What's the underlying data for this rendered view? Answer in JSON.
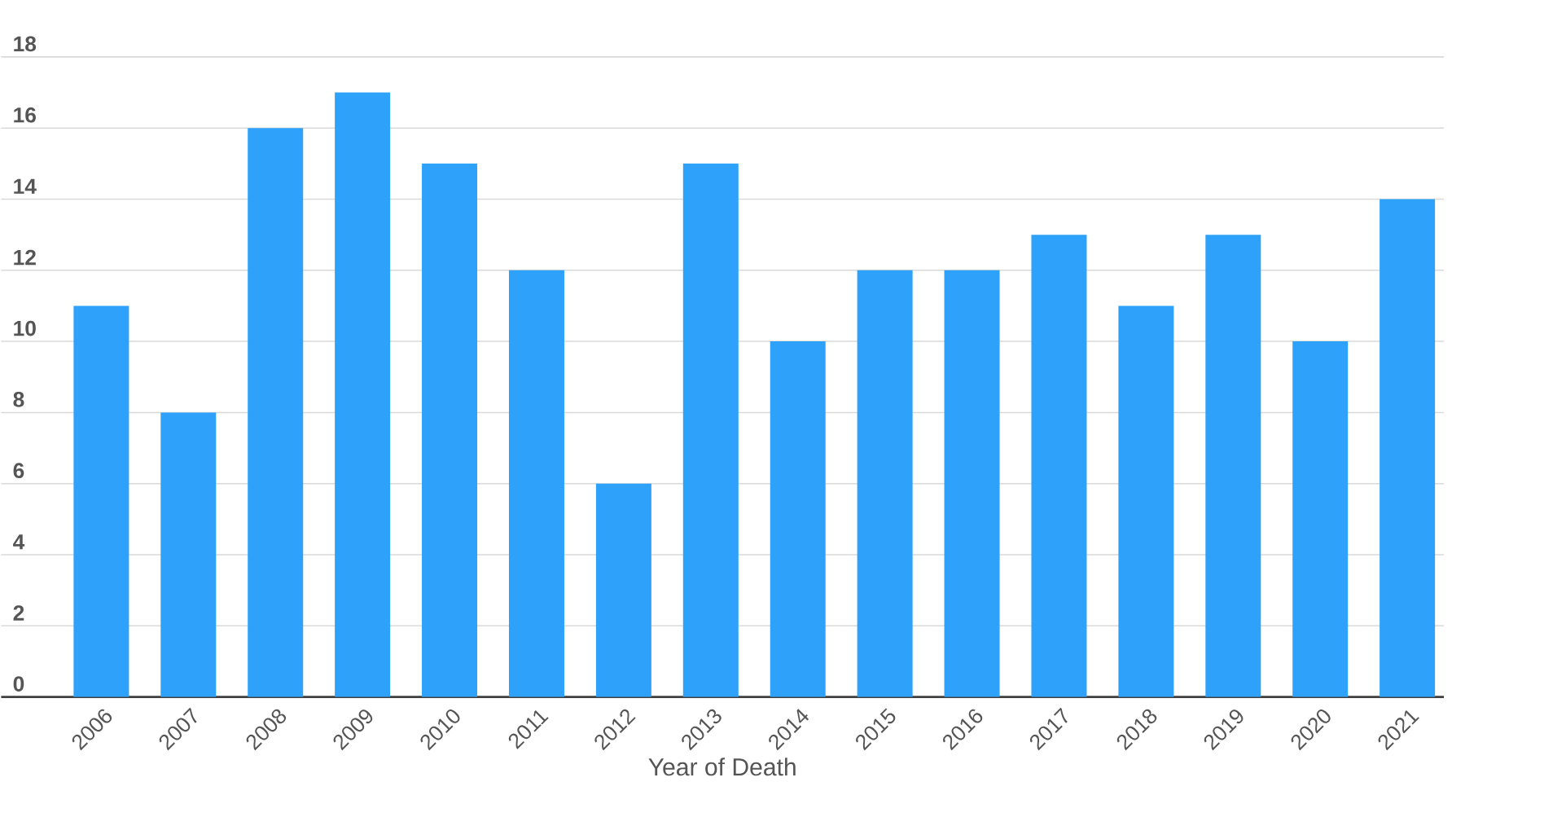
{
  "chart_data": {
    "type": "bar",
    "xlabel": "Year of Death",
    "categories": [
      "2006",
      "2007",
      "2008",
      "2009",
      "2010",
      "2011",
      "2012",
      "2013",
      "2014",
      "2015",
      "2016",
      "2017",
      "2018",
      "2019",
      "2020",
      "2021"
    ],
    "values": [
      11,
      8,
      16,
      17,
      15,
      12,
      6,
      15,
      10,
      12,
      12,
      13,
      11,
      13,
      10,
      14
    ],
    "color": "#2ea2fa",
    "ylim": [
      0,
      18
    ],
    "yticks": [
      0,
      2,
      4,
      6,
      8,
      10,
      12,
      14,
      16,
      18
    ],
    "grid": "y"
  }
}
